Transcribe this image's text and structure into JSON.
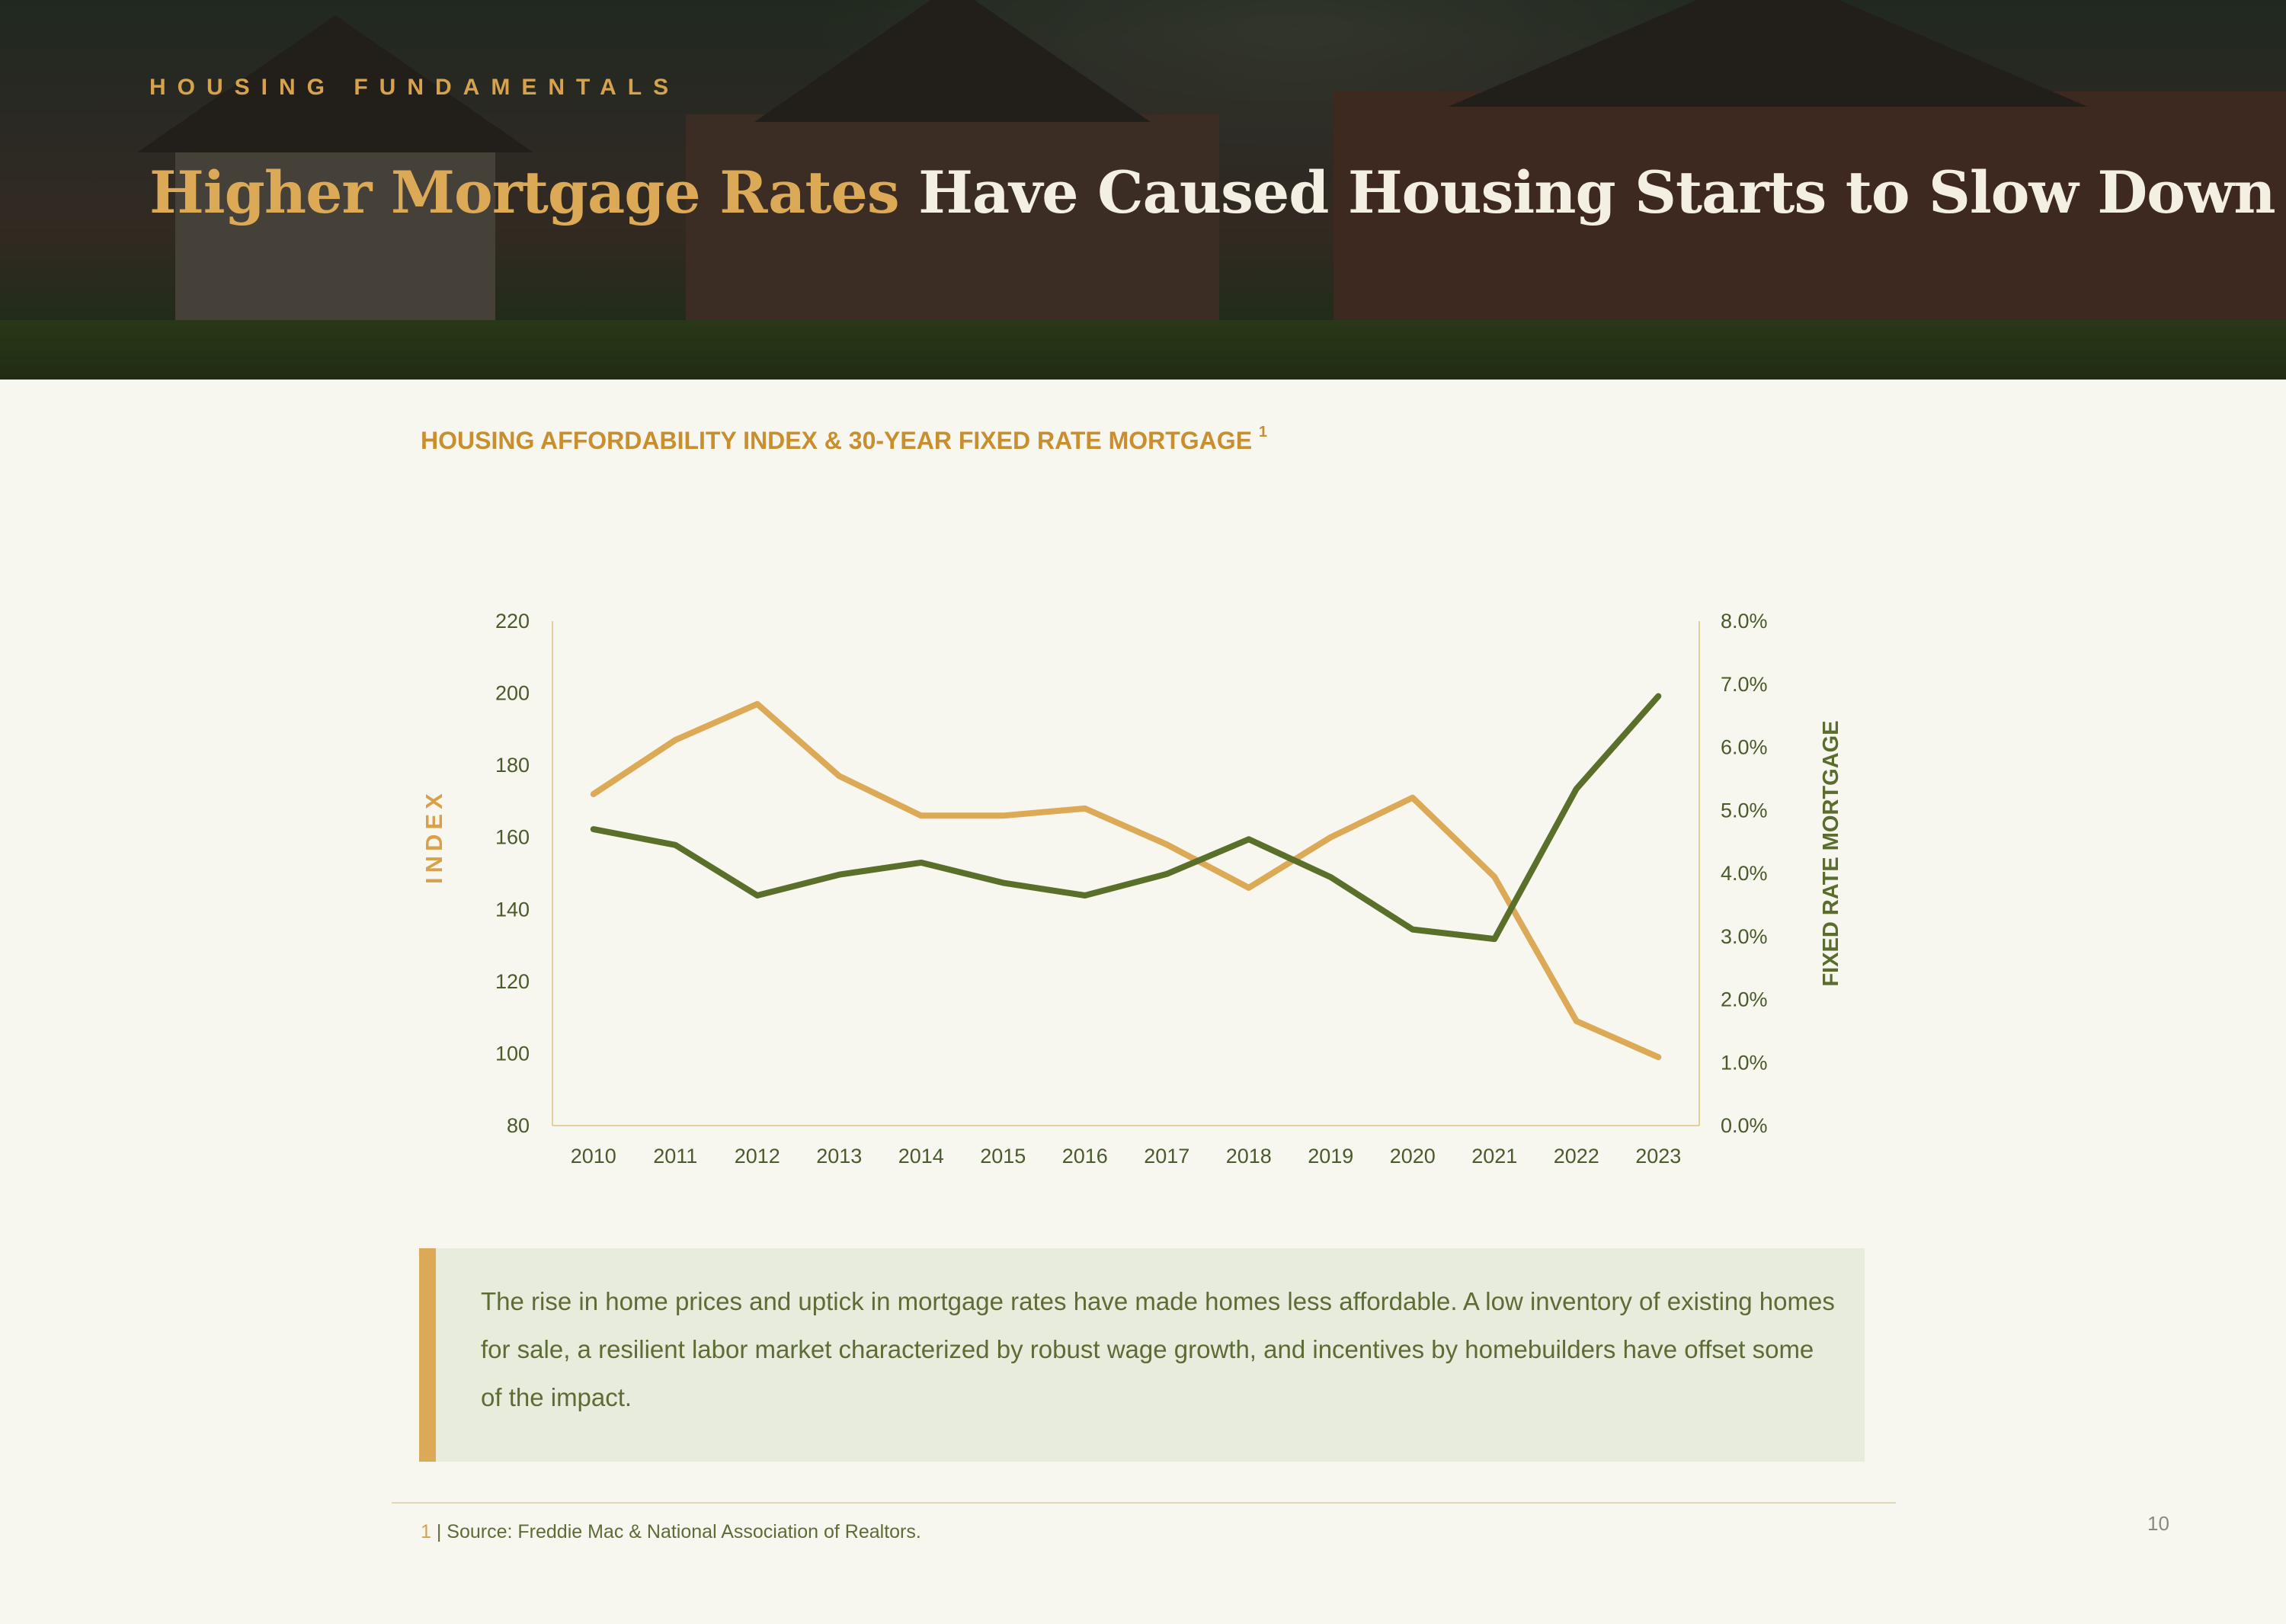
{
  "header": {
    "eyebrow": "HOUSING FUNDAMENTALS",
    "title_highlight": "Higher Mortgage Rates",
    "title_rest": " Have Caused Housing Starts to Slow Down"
  },
  "chart_heading": "HOUSING AFFORDABILITY INDEX & 30-YEAR FIXED RATE MORTGAGE",
  "chart_heading_sup": "1",
  "chart_data": {
    "type": "line",
    "categories": [
      "2010",
      "2011",
      "2012",
      "2013",
      "2014",
      "2015",
      "2016",
      "2017",
      "2018",
      "2019",
      "2020",
      "2021",
      "2022",
      "2023"
    ],
    "left_axis": {
      "label": "INDEX",
      "ylim": [
        80,
        220
      ],
      "ticks": [
        "220",
        "200",
        "180",
        "160",
        "140",
        "120",
        "100",
        "80"
      ],
      "tick_values": [
        220,
        200,
        180,
        160,
        140,
        120,
        100,
        80
      ]
    },
    "right_axis": {
      "label": "FIXED RATE MORTGAGE",
      "ylim": [
        0,
        8
      ],
      "ticks": [
        "8.0%",
        "7.0%",
        "6.0%",
        "5.0%",
        "4.0%",
        "3.0%",
        "2.0%",
        "1.0%",
        "0.0%"
      ],
      "tick_values": [
        8,
        7,
        6,
        5,
        4,
        3,
        2,
        1,
        0
      ]
    },
    "series": [
      {
        "axis": "left",
        "color": "#dca957",
        "values": [
          172,
          187,
          197,
          177,
          166,
          166,
          168,
          158,
          146,
          160,
          171,
          149,
          109,
          99
        ]
      },
      {
        "axis": "right",
        "color": "#5a6f2a",
        "values": [
          4.7,
          4.45,
          3.65,
          3.98,
          4.17,
          3.85,
          3.65,
          3.99,
          4.54,
          3.94,
          3.11,
          2.96,
          5.34,
          6.81
        ]
      }
    ],
    "grid": false
  },
  "callout": {
    "text": "The rise in home prices and uptick in mortgage rates have made homes less affordable. A low inventory of existing homes for sale, a resilient labor market characterized by robust wage growth, and incentives by homebuilders have offset some of the impact."
  },
  "footnote": {
    "number": "1",
    "text": " | Source: Freddie Mac & National Association of Realtors."
  },
  "page_number": "10",
  "colors": {
    "accent_gold": "#dca957",
    "accent_green": "#5a6f2a",
    "background": "#f7f7f0"
  }
}
